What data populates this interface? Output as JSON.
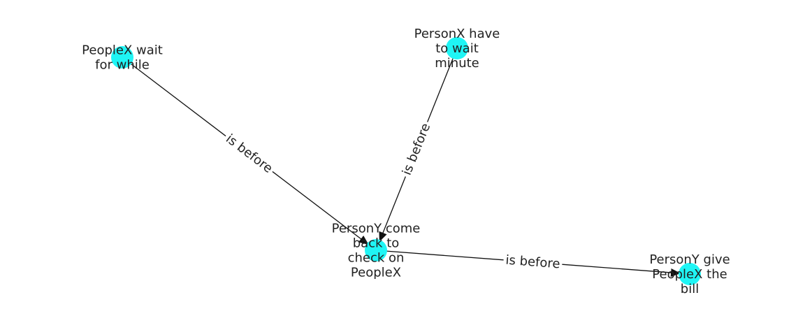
{
  "graph": {
    "node_color": "#1ff5f5",
    "edge_color": "#111111",
    "text_color": "#222222",
    "nodes": [
      {
        "id": "peoplex-wait",
        "label_lines": [
          "PeopleX wait",
          "for while"
        ]
      },
      {
        "id": "personx-have",
        "label_lines": [
          "PersonX have",
          "to wait",
          "minute"
        ]
      },
      {
        "id": "persony-come",
        "label_lines": [
          "PersonY come",
          "back to",
          "check on",
          "PeopleX"
        ]
      },
      {
        "id": "persony-give",
        "label_lines": [
          "PersonY give",
          "PeopleX the",
          "bill"
        ]
      }
    ],
    "edges": [
      {
        "from": "peoplex-wait",
        "to": "persony-come",
        "label": "is before"
      },
      {
        "from": "personx-have",
        "to": "persony-come",
        "label": "is before"
      },
      {
        "from": "persony-come",
        "to": "persony-give",
        "label": "is before"
      }
    ]
  }
}
